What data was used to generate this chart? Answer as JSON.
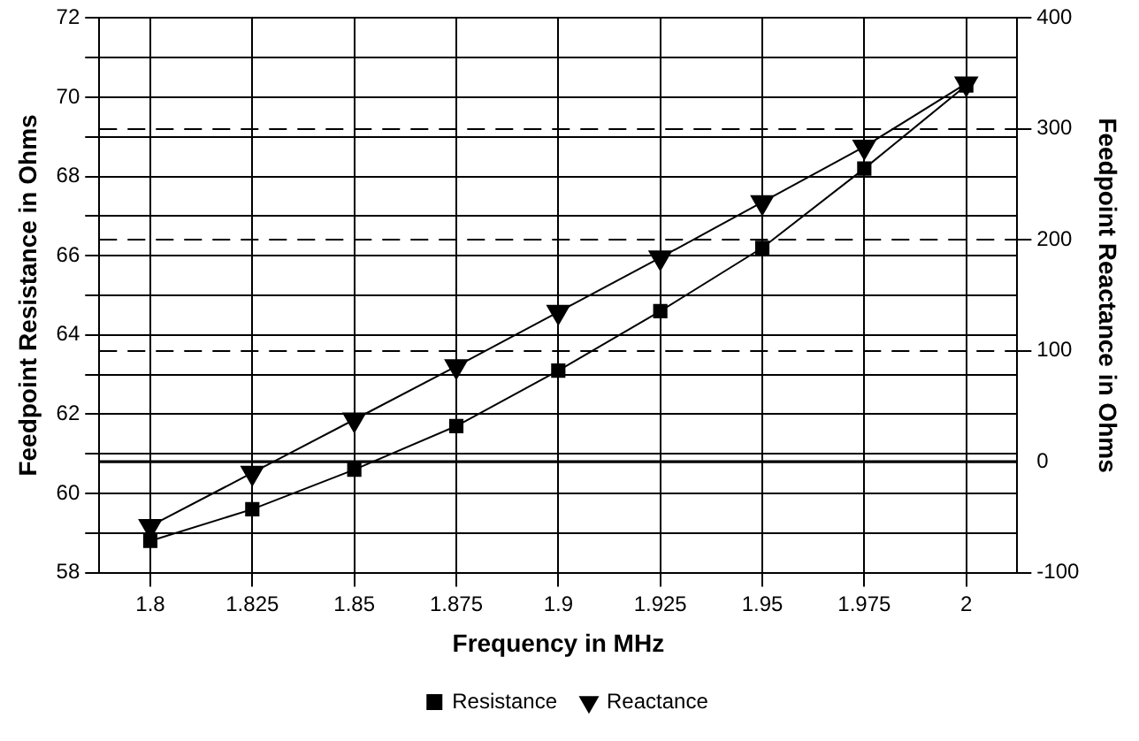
{
  "chart_data": {
    "type": "line",
    "xlabel": "Frequency in MHz",
    "ylabel": "Feedpoint Resistance in Ohms",
    "y2label": "Feedpoint Reactance in Ohms",
    "categories": [
      "1.8",
      "1.825",
      "1.85",
      "1.875",
      "1.9",
      "1.925",
      "1.95",
      "1.975",
      "2"
    ],
    "series": [
      {
        "name": "Resistance",
        "color": "#000000",
        "marker": "square",
        "values": [
          58.8,
          59.6,
          60.6,
          61.7,
          63.1,
          64.6,
          66.2,
          68.2,
          70.3
        ]
      },
      {
        "name": "Reactance",
        "color": "#000000",
        "marker": "triangle",
        "axis": "y2",
        "values": [
          -58,
          -10,
          38,
          86,
          135,
          184,
          234,
          284,
          341
        ]
      }
    ],
    "ylim": [
      58,
      72
    ],
    "yticks": [
      58,
      {
        "value": 59,
        "label": null
      },
      60,
      {
        "value": 61,
        "label": null
      },
      62,
      {
        "value": 63,
        "label": null
      },
      64,
      {
        "value": 65,
        "label": null
      },
      66,
      {
        "value": 67,
        "label": null
      },
      68,
      {
        "value": 69,
        "label": null
      },
      70,
      {
        "value": 71,
        "label": null
      },
      72
    ],
    "y2lim": [
      -100,
      400
    ],
    "y2ticks": [
      -100,
      0,
      100,
      200,
      300,
      400
    ],
    "ref_lines": [
      {
        "axis": "y2",
        "value": 0,
        "color": "#000000"
      }
    ],
    "grid": true,
    "legend": "bottom",
    "line_style": "solid"
  }
}
